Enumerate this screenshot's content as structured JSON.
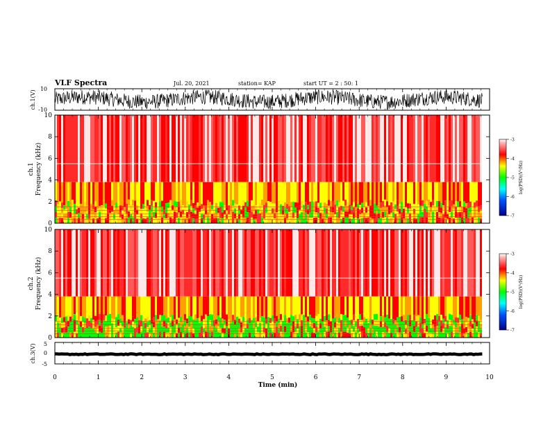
{
  "header": {
    "title": "VLF Spectra",
    "date": "Jul. 20, 2021",
    "station": "station= KAP",
    "start": "start UT =  2 : 50: 1"
  },
  "colors": {
    "low": "#00008b",
    "mid_low": "#00bfff",
    "mid": "#00ff00",
    "mid_high": "#ffff00",
    "high": "#ff0000",
    "top": "#ffffff",
    "waveform": "#000000"
  },
  "chart_data": [
    {
      "type": "line",
      "id": "ch1-waveform",
      "ylabel": "ch.1(V)",
      "ylim": [
        -10,
        10
      ],
      "yticks": [
        "10",
        "-10"
      ],
      "xlim": [
        0,
        10
      ],
      "description": "raw waveform, dense oscillation between about -10 and 10 V"
    },
    {
      "type": "heatmap",
      "id": "ch1-spectrogram",
      "ylabel": "ch.1",
      "ylabel2": "Frequency (kHz)",
      "ylim": [
        0,
        10
      ],
      "yticks": [
        "0",
        "2",
        "4",
        "6",
        "8",
        "10"
      ],
      "xlim": [
        0,
        10
      ],
      "colorbar": {
        "label": "log(PSD)(V²/Hz)",
        "ticks": [
          "-3",
          "-4",
          "-5",
          "-6",
          "-7"
        ],
        "range": [
          -7,
          -3
        ]
      }
    },
    {
      "type": "heatmap",
      "id": "ch2-spectrogram",
      "ylabel": "ch.2",
      "ylabel2": "Frequency (kHz)",
      "ylim": [
        0,
        10
      ],
      "yticks": [
        "0",
        "2",
        "4",
        "6",
        "8",
        "10"
      ],
      "xlim": [
        0,
        10
      ],
      "colorbar": {
        "label": "log(PSD)(V²/Hz)",
        "ticks": [
          "-3",
          "-4",
          "-5",
          "-6",
          "-7"
        ],
        "range": [
          -7,
          -3
        ]
      }
    },
    {
      "type": "line",
      "id": "ch3-waveform",
      "ylabel": "ch.3(V)",
      "ylim": [
        -5,
        5
      ],
      "yticks": [
        "5",
        "0",
        "-5"
      ],
      "xlim": [
        0,
        10
      ],
      "description": "near-constant trace around -0.5 V with small noise"
    }
  ],
  "xaxis": {
    "label": "Time (min)",
    "ticks": [
      "0",
      "1",
      "2",
      "3",
      "4",
      "5",
      "6",
      "7",
      "8",
      "9",
      "10"
    ]
  }
}
